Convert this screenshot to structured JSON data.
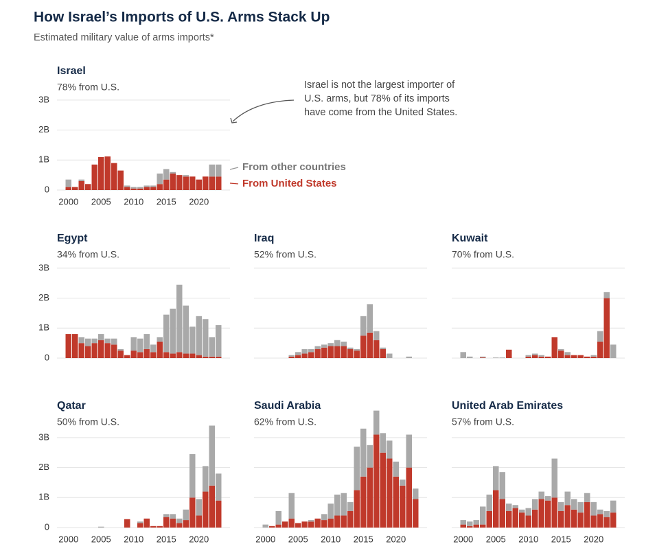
{
  "title": "How Israel’s Imports of U.S. Arms Stack Up",
  "subtitle": "Estimated military value of arms imports*",
  "annotation": [
    "Israel is not the largest importer of",
    "U.S. arms, but 78% of its imports",
    "have come from the United States."
  ],
  "chart_data": [
    {
      "type": "bar",
      "stacked": true,
      "title": "Israel",
      "subtitle": "78% from U.S.",
      "x": [
        2000,
        2001,
        2002,
        2003,
        2004,
        2005,
        2006,
        2007,
        2008,
        2009,
        2010,
        2011,
        2012,
        2013,
        2014,
        2015,
        2016,
        2017,
        2018,
        2019,
        2020,
        2021,
        2022,
        2023
      ],
      "xlim": [
        1999.5,
        2023.5
      ],
      "xticks": [
        2000,
        2005,
        2010,
        2015,
        2020
      ],
      "ylim": [
        0,
        3
      ],
      "yticks": [
        0,
        {
          "value": 1,
          "label": "1B"
        },
        {
          "value": 2,
          "label": "2B"
        },
        {
          "value": 3,
          "label": "3B"
        }
      ],
      "grid": true,
      "series": [
        {
          "name": "From United States",
          "color": "#c0392b",
          "values": [
            0.1,
            0.1,
            0.3,
            0.2,
            0.85,
            1.1,
            1.12,
            0.9,
            0.65,
            0.1,
            0.05,
            0.05,
            0.1,
            0.1,
            0.2,
            0.35,
            0.55,
            0.5,
            0.45,
            0.45,
            0.35,
            0.45,
            0.45,
            0.45
          ]
        },
        {
          "name": "From other countries",
          "color": "#a9a9a9",
          "values": [
            0.25,
            0,
            0.05,
            0,
            0,
            0,
            0,
            0,
            0,
            0.05,
            0.05,
            0.05,
            0.05,
            0.05,
            0.35,
            0.35,
            0.05,
            0,
            0.05,
            0,
            0,
            0,
            0.4,
            0.4
          ]
        }
      ]
    },
    {
      "type": "bar",
      "stacked": true,
      "title": "Egypt",
      "subtitle": "34% from U.S.",
      "x": [
        2000,
        2001,
        2002,
        2003,
        2004,
        2005,
        2006,
        2007,
        2008,
        2009,
        2010,
        2011,
        2012,
        2013,
        2014,
        2015,
        2016,
        2017,
        2018,
        2019,
        2020,
        2021,
        2022,
        2023
      ],
      "xlim": [
        1999.5,
        2023.5
      ],
      "ylim": [
        0,
        3
      ],
      "yticks": [
        0,
        {
          "value": 1,
          "label": "1B"
        },
        {
          "value": 2,
          "label": "2B"
        },
        {
          "value": 3,
          "label": "3B"
        }
      ],
      "grid": true,
      "series": [
        {
          "color": "#c0392b",
          "values": [
            0.8,
            0.8,
            0.5,
            0.4,
            0.5,
            0.6,
            0.5,
            0.45,
            0.25,
            0.1,
            0.25,
            0.2,
            0.3,
            0.2,
            0.55,
            0.2,
            0.15,
            0.2,
            0.15,
            0.15,
            0.1,
            0.05,
            0.05,
            0.05
          ]
        },
        {
          "color": "#a9a9a9",
          "values": [
            0,
            0,
            0.2,
            0.25,
            0.15,
            0.2,
            0.15,
            0.2,
            0.05,
            0,
            0.45,
            0.45,
            0.5,
            0.25,
            0.15,
            1.25,
            1.5,
            2.25,
            1.6,
            0.9,
            1.3,
            1.25,
            0.65,
            1.05
          ]
        }
      ]
    },
    {
      "type": "bar",
      "stacked": true,
      "title": "Iraq",
      "subtitle": "52% from U.S.",
      "x": [
        2000,
        2001,
        2002,
        2003,
        2004,
        2005,
        2006,
        2007,
        2008,
        2009,
        2010,
        2011,
        2012,
        2013,
        2014,
        2015,
        2016,
        2017,
        2018,
        2019,
        2020,
        2021,
        2022,
        2023
      ],
      "xlim": [
        1999.5,
        2023.5
      ],
      "ylim": [
        0,
        3
      ],
      "yticks": [
        0,
        1,
        2,
        3
      ],
      "ytick_labels": false,
      "grid": true,
      "series": [
        {
          "color": "#c0392b",
          "values": [
            0,
            0,
            0,
            0,
            0.05,
            0.1,
            0.15,
            0.2,
            0.3,
            0.35,
            0.4,
            0.4,
            0.4,
            0.3,
            0.25,
            0.75,
            0.85,
            0.6,
            0.3,
            0,
            0,
            0,
            0,
            0
          ]
        },
        {
          "color": "#a9a9a9",
          "values": [
            0,
            0,
            0,
            0,
            0.05,
            0.1,
            0.15,
            0.1,
            0.1,
            0.1,
            0.1,
            0.2,
            0.15,
            0.05,
            0.05,
            0.65,
            0.95,
            0.3,
            0.05,
            0.15,
            0,
            0,
            0.05,
            0
          ]
        }
      ]
    },
    {
      "type": "bar",
      "stacked": true,
      "title": "Kuwait",
      "subtitle": "70% from U.S.",
      "x": [
        2000,
        2001,
        2002,
        2003,
        2004,
        2005,
        2006,
        2007,
        2008,
        2009,
        2010,
        2011,
        2012,
        2013,
        2014,
        2015,
        2016,
        2017,
        2018,
        2019,
        2020,
        2021,
        2022,
        2023
      ],
      "xlim": [
        1999.5,
        2023.5
      ],
      "ylim": [
        0,
        3
      ],
      "yticks": [
        0,
        1,
        2,
        3
      ],
      "ytick_labels": false,
      "grid": true,
      "series": [
        {
          "color": "#c0392b",
          "values": [
            0,
            0,
            0,
            0.02,
            0,
            0,
            0,
            0.28,
            0,
            0,
            0.05,
            0.1,
            0.05,
            0.05,
            0.7,
            0.25,
            0.1,
            0.1,
            0.1,
            0.05,
            0.05,
            0.55,
            2.0,
            0
          ]
        },
        {
          "color": "#a9a9a9",
          "values": [
            0.2,
            0.05,
            0,
            0.03,
            0,
            0.02,
            0.02,
            0,
            0,
            0,
            0.05,
            0.05,
            0.05,
            0,
            0,
            0.05,
            0.1,
            0,
            0,
            0,
            0.05,
            0.35,
            0.2,
            0.45
          ]
        }
      ]
    },
    {
      "type": "bar",
      "stacked": true,
      "title": "Qatar",
      "subtitle": "50% from U.S.",
      "x": [
        2000,
        2001,
        2002,
        2003,
        2004,
        2005,
        2006,
        2007,
        2008,
        2009,
        2010,
        2011,
        2012,
        2013,
        2014,
        2015,
        2016,
        2017,
        2018,
        2019,
        2020,
        2021,
        2022,
        2023
      ],
      "xlim": [
        1999.5,
        2023.5
      ],
      "xticks": [
        2000,
        2005,
        2010,
        2015,
        2020
      ],
      "ylim": [
        0,
        4
      ],
      "yticks": [
        0,
        {
          "value": 1,
          "label": "1B"
        },
        {
          "value": 2,
          "label": "2B"
        },
        {
          "value": 3,
          "label": "3B"
        }
      ],
      "grid": true,
      "series": [
        {
          "color": "#c0392b",
          "values": [
            0,
            0,
            0,
            0,
            0,
            0,
            0,
            0,
            0,
            0.28,
            0,
            0.15,
            0.3,
            0.05,
            0.05,
            0.35,
            0.3,
            0.15,
            0.25,
            1.0,
            0.4,
            1.2,
            1.4,
            0.9
          ]
        },
        {
          "color": "#a9a9a9",
          "values": [
            0,
            0,
            0,
            0,
            0,
            0.03,
            0,
            0,
            0,
            0,
            0,
            0.05,
            0,
            0,
            0,
            0.1,
            0.15,
            0.15,
            0.35,
            1.45,
            0.55,
            0.85,
            2.0,
            0.9
          ]
        }
      ]
    },
    {
      "type": "bar",
      "stacked": true,
      "title": "Saudi Arabia",
      "subtitle": "62% from U.S.",
      "x": [
        2000,
        2001,
        2002,
        2003,
        2004,
        2005,
        2006,
        2007,
        2008,
        2009,
        2010,
        2011,
        2012,
        2013,
        2014,
        2015,
        2016,
        2017,
        2018,
        2019,
        2020,
        2021,
        2022,
        2023
      ],
      "xlim": [
        1999.5,
        2023.5
      ],
      "xticks": [
        2000,
        2005,
        2010,
        2015,
        2020
      ],
      "ylim": [
        0,
        4
      ],
      "yticks": [
        0,
        1,
        2,
        3
      ],
      "ytick_labels": false,
      "grid": true,
      "series": [
        {
          "color": "#c0392b",
          "values": [
            0,
            0.05,
            0.1,
            0.2,
            0.3,
            0.15,
            0.2,
            0.2,
            0.3,
            0.25,
            0.3,
            0.4,
            0.4,
            0.55,
            1.25,
            1.7,
            2.0,
            3.1,
            2.5,
            2.3,
            1.7,
            1.4,
            2.0,
            0.95
          ]
        },
        {
          "color": "#a9a9a9",
          "values": [
            0.1,
            0,
            0.45,
            0,
            0.85,
            0,
            0,
            0.05,
            0,
            0.2,
            0.5,
            0.7,
            0.75,
            0.3,
            1.45,
            1.6,
            0.75,
            0.8,
            0.65,
            0.6,
            0.5,
            0.2,
            1.1,
            0.35
          ]
        }
      ]
    },
    {
      "type": "bar",
      "stacked": true,
      "title": "United Arab Emirates",
      "subtitle": "57% from U.S.",
      "x": [
        2000,
        2001,
        2002,
        2003,
        2004,
        2005,
        2006,
        2007,
        2008,
        2009,
        2010,
        2011,
        2012,
        2013,
        2014,
        2015,
        2016,
        2017,
        2018,
        2019,
        2020,
        2021,
        2022,
        2023
      ],
      "xlim": [
        1999.5,
        2023.5
      ],
      "xticks": [
        2000,
        2005,
        2010,
        2015,
        2020
      ],
      "ylim": [
        0,
        4
      ],
      "yticks": [
        0,
        1,
        2,
        3
      ],
      "ytick_labels": false,
      "grid": true,
      "series": [
        {
          "color": "#c0392b",
          "values": [
            0.1,
            0.05,
            0.1,
            0.1,
            0.55,
            1.25,
            0.95,
            0.55,
            0.65,
            0.5,
            0.4,
            0.6,
            0.95,
            0.9,
            1.0,
            0.55,
            0.75,
            0.6,
            0.5,
            0.85,
            0.4,
            0.45,
            0.35,
            0.5
          ]
        },
        {
          "color": "#a9a9a9",
          "values": [
            0.15,
            0.15,
            0.15,
            0.6,
            0.55,
            0.8,
            0.9,
            0.25,
            0.1,
            0.1,
            0.25,
            0.35,
            0.25,
            0.15,
            1.3,
            0.3,
            0.45,
            0.35,
            0.35,
            0.3,
            0.45,
            0.15,
            0.2,
            0.4
          ]
        }
      ]
    }
  ]
}
